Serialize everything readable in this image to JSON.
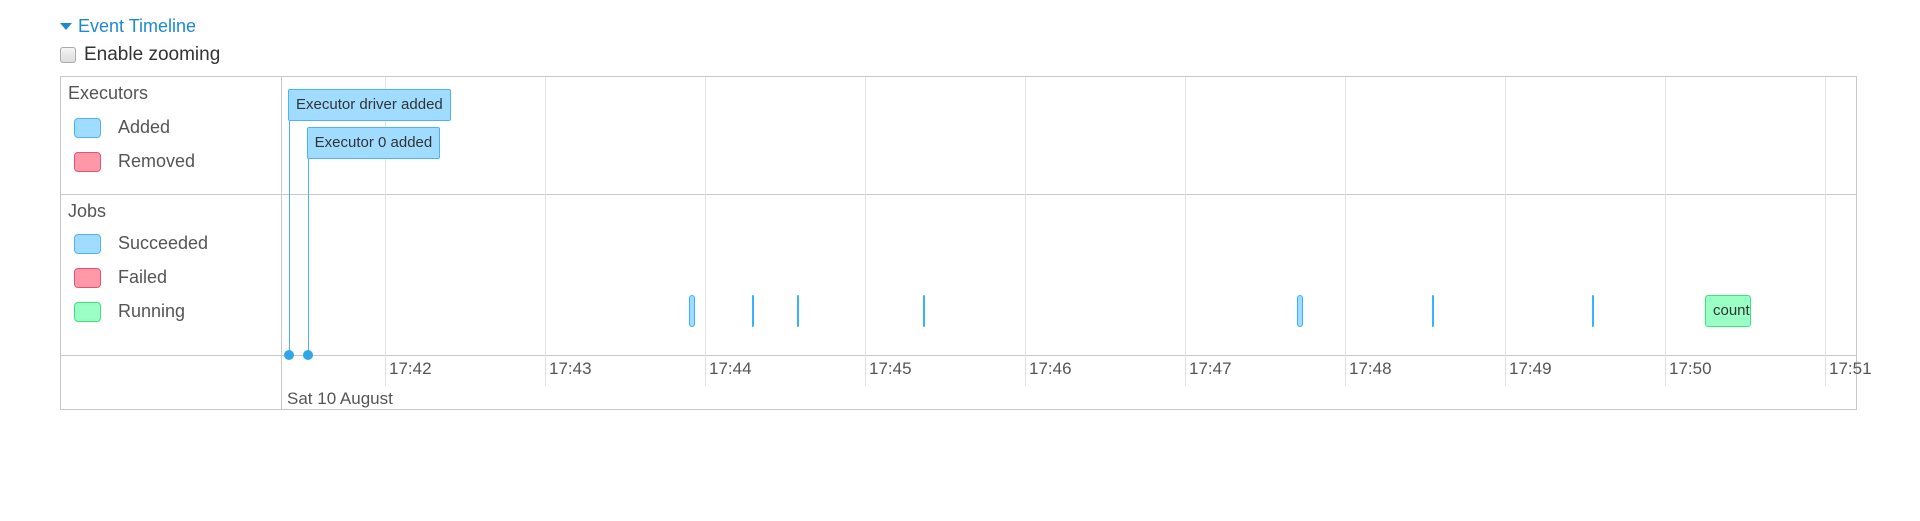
{
  "section": {
    "title": "Event Timeline",
    "expanded": true
  },
  "zoom": {
    "label": "Enable zooming",
    "checked": false
  },
  "legend": {
    "executors": {
      "title": "Executors",
      "items": [
        {
          "label": "Added",
          "fill": "#a0dcff",
          "border": "#4db3f5"
        },
        {
          "label": "Removed",
          "fill": "#ff99aa",
          "border": "#f0506e"
        }
      ]
    },
    "jobs": {
      "title": "Jobs",
      "items": [
        {
          "label": "Succeeded",
          "fill": "#a0dcff",
          "border": "#4db3f5"
        },
        {
          "label": "Failed",
          "fill": "#ff99aa",
          "border": "#f0506e"
        },
        {
          "label": "Running",
          "fill": "#99ffc4",
          "border": "#3ee37e"
        }
      ]
    }
  },
  "executor_events": [
    {
      "label": "Executor driver added",
      "time": "17:41:24"
    },
    {
      "label": "Executor 0 added",
      "time": "17:41:31"
    }
  ],
  "jobs": [
    {
      "status": "succeeded",
      "start": "17:43:54",
      "end": "17:43:56"
    },
    {
      "status": "succeeded",
      "start": "17:44:18",
      "end": "17:44:18"
    },
    {
      "status": "succeeded",
      "start": "17:44:35",
      "end": "17:44:35"
    },
    {
      "status": "succeeded",
      "start": "17:45:22",
      "end": "17:45:22"
    },
    {
      "status": "succeeded",
      "start": "17:47:42",
      "end": "17:47:44"
    },
    {
      "status": "succeeded",
      "start": "17:48:33",
      "end": "17:48:33"
    },
    {
      "status": "succeeded",
      "start": "17:49:33",
      "end": "17:49:33"
    },
    {
      "status": "running",
      "label": "count",
      "start": "17:50:15",
      "end": "17:50:32"
    }
  ],
  "axis": {
    "ticks": [
      "17:42",
      "17:43",
      "17:44",
      "17:45",
      "17:46",
      "17:47",
      "17:48",
      "17:49",
      "17:50",
      "17:51"
    ],
    "date_label": "Sat 10 August"
  }
}
